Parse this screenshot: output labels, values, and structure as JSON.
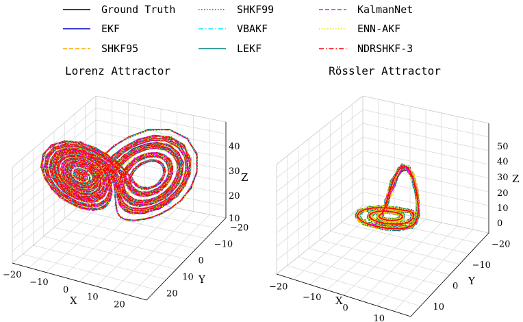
{
  "legend": {
    "entries": [
      {
        "label": "Ground Truth",
        "color": "#000000",
        "dash": "solid"
      },
      {
        "label": "EKF",
        "color": "#0000cc",
        "dash": "solid"
      },
      {
        "label": "SHKF95",
        "color": "#ffa500",
        "dash": "dashed"
      },
      {
        "label": "SHKF99",
        "color": "#008000",
        "dash": "dotted"
      },
      {
        "label": "VBAKF",
        "color": "#00e5ff",
        "dash": "dashdot"
      },
      {
        "label": "LEKF",
        "color": "#008080",
        "dash": "solid"
      },
      {
        "label": "KalmanNet",
        "color": "#ff00ff",
        "dash": "dashed"
      },
      {
        "label": "ENN-AKF",
        "color": "#e6e600",
        "dash": "dotted"
      },
      {
        "label": "NDRSHKF-3",
        "color": "#ff0000",
        "dash": "dashdot"
      }
    ]
  },
  "chart_data": [
    {
      "type": "line",
      "subtype": "3d-trajectory",
      "title": "Lorenz Attractor",
      "xlabel": "X",
      "ylabel": "Y",
      "zlabel": "Z",
      "xticks": [
        "−20",
        "−10",
        "0",
        "10",
        "20"
      ],
      "yticks": [
        "−20",
        "−10",
        "0",
        "10",
        "20"
      ],
      "zticks": [
        "10",
        "20",
        "30",
        "40"
      ],
      "xlim": [
        -20,
        20
      ],
      "ylim": [
        -25,
        25
      ],
      "zlim": [
        5,
        45
      ],
      "series": [
        "Ground Truth",
        "EKF",
        "SHKF95",
        "SHKF99",
        "VBAKF",
        "LEKF",
        "KalmanNet",
        "ENN-AKF",
        "NDRSHKF-3"
      ]
    },
    {
      "type": "line",
      "subtype": "3d-trajectory",
      "title": "Rössler Attractor",
      "xlabel": "X",
      "ylabel": "Y",
      "zlabel": "Z",
      "xticks": [
        "−20",
        "−10",
        "0",
        "10"
      ],
      "yticks": [
        "−20",
        "−10",
        "0",
        "10"
      ],
      "zticks": [
        "0",
        "10",
        "20",
        "30",
        "40",
        "50"
      ],
      "xlim": [
        -20,
        15
      ],
      "ylim": [
        -20,
        15
      ],
      "zlim": [
        -5,
        58
      ],
      "series": [
        "Ground Truth",
        "EKF",
        "SHKF95",
        "SHKF99",
        "VBAKF",
        "LEKF",
        "KalmanNet",
        "ENN-AKF",
        "NDRSHKF-3"
      ]
    }
  ]
}
